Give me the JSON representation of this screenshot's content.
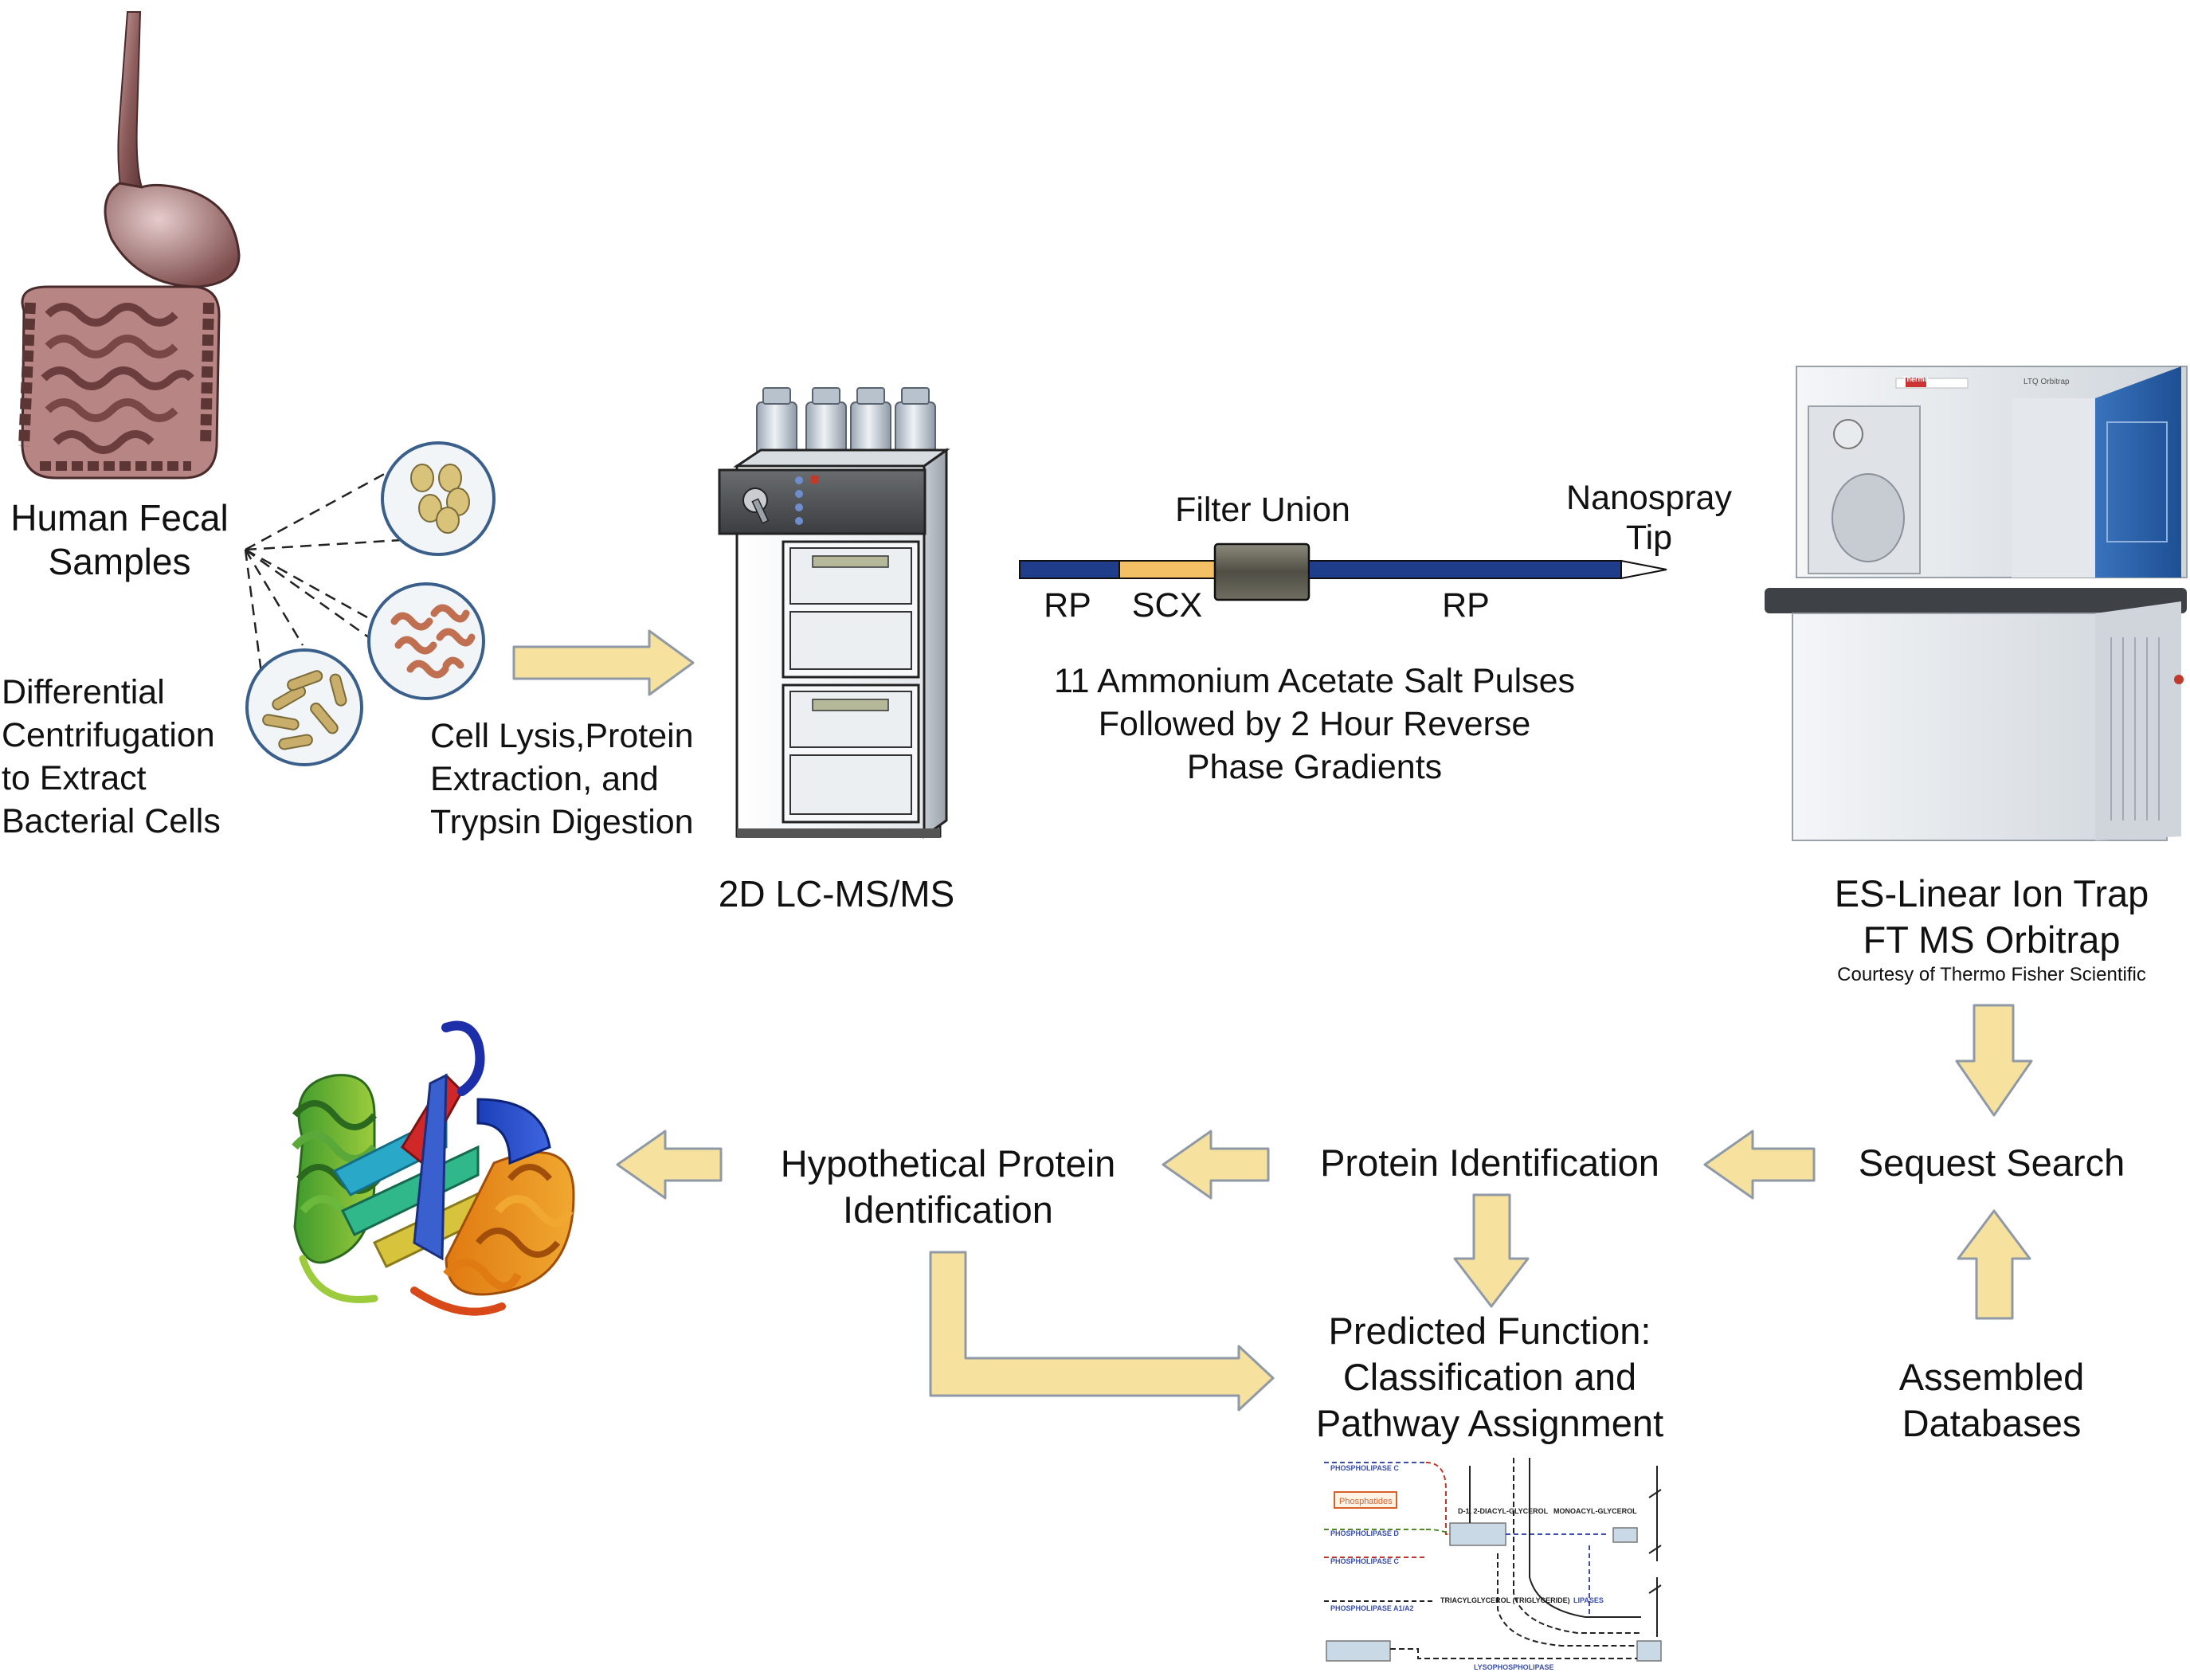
{
  "labels": {
    "fecal_line1": "Human Fecal",
    "fecal_line2": "Samples",
    "centrifuge_lines": [
      "Differential",
      "Centrifugation",
      "to Extract",
      "Bacterial Cells"
    ],
    "lysis_lines": [
      "Cell Lysis,Protein",
      "Extraction, and",
      "Trypsin Digestion"
    ],
    "lc_caption": "2D LC-MS/MS",
    "filter_union": "Filter Union",
    "nanospray_lines": [
      "Nanospray",
      "Tip"
    ],
    "column_rp_left": "RP",
    "column_scx": "SCX",
    "column_rp_right": "RP",
    "salt_lines": [
      "11 Ammonium Acetate Salt Pulses",
      "Followed by 2 Hour Reverse",
      "Phase Gradients"
    ],
    "ms_lines": [
      "ES-Linear Ion Trap",
      "FT MS Orbitrap"
    ],
    "courtesy": "Courtesy of Thermo Fisher Scientific",
    "instrument_brand": "Thermo",
    "instrument_model": "LTQ Orbitrap",
    "sequest": "Sequest Search",
    "protein_id": "Protein Identification",
    "hypothetical_lines": [
      "Hypothetical Protein",
      "Identification"
    ],
    "predicted_lines": [
      "Predicted Function:",
      "Classification and",
      "Pathway Assignment"
    ],
    "assembled_lines": [
      "Assembled",
      "Databases"
    ]
  },
  "pathway_thumbnail": {
    "phospholipase_c_top": "PHOSPHOLIPASE C",
    "phosphatides": "Phosphatides",
    "diacylglycerol": "D-1, 2-DIACYL-GLYCEROL",
    "monoacylglycerol": "MONOACYL-GLYCEROL",
    "phospholipase_d": "PHOSPHOLIPASE D",
    "phospholipase_c_low": "PHOSPHOLIPASE C",
    "lipases": "LIPASES",
    "triacylglycerol": "TRIACYLGLYCEROL (TRIGLYCERIDE)",
    "phospholipase_a": "PHOSPHOLIPASE A1/A2",
    "lysophospholipase": "LYSOPHOSPHOLIPASE"
  },
  "colors": {
    "arrow_fill": "#f7e19f",
    "arrow_stroke": "#8f9aa6",
    "rp_column": "#1f3d8a",
    "scx_column": "#f4c066",
    "filter_union": "#5b5a4e",
    "gut": "#8c5b5b",
    "instrument_blue": "#2860a8",
    "cell_fill": "#f0f4f6",
    "cell_inner": "#d9c27a",
    "rod_color": "#c07050"
  }
}
